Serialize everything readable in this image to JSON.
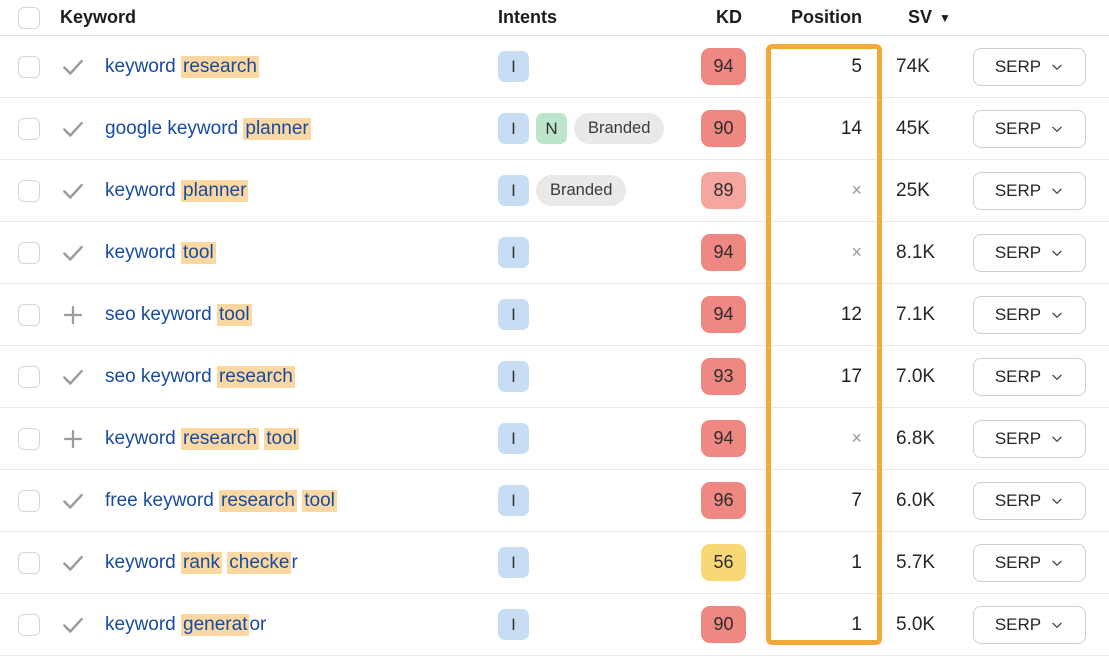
{
  "header": {
    "keyword": "Keyword",
    "intents": "Intents",
    "kd": "KD",
    "position": "Position",
    "sv": "SV",
    "sv_sort": "desc"
  },
  "serp_label": "SERP",
  "position_not_ranking": "×",
  "colors": {
    "link": "#174b9e",
    "highlight": "#fbd7a1",
    "position_box": "#f5a83c",
    "kd_red": "#ef8782",
    "kd_red_soft": "#f4a69f",
    "kd_yellow": "#f8d874",
    "intent_informational": "#c7ddf3",
    "intent_navigational": "#bce5cb",
    "intent_branded": "#e9e9e9"
  },
  "rows": [
    {
      "keyword_parts": [
        {
          "text": "keyword ",
          "highlight": false
        },
        {
          "text": "research",
          "highlight": true
        }
      ],
      "action": "check",
      "intents": [
        "I"
      ],
      "kd": "94",
      "kd_color": "kd_red",
      "position": "5",
      "sv": "74K"
    },
    {
      "keyword_parts": [
        {
          "text": "google keyword ",
          "highlight": false
        },
        {
          "text": "planner",
          "highlight": true
        }
      ],
      "action": "check",
      "intents": [
        "I",
        "N",
        "Branded"
      ],
      "kd": "90",
      "kd_color": "kd_red",
      "position": "14",
      "sv": "45K"
    },
    {
      "keyword_parts": [
        {
          "text": "keyword ",
          "highlight": false
        },
        {
          "text": "planner",
          "highlight": true
        }
      ],
      "action": "check",
      "intents": [
        "I",
        "Branded"
      ],
      "kd": "89",
      "kd_color": "kd_red_soft",
      "position": "×",
      "sv": "25K"
    },
    {
      "keyword_parts": [
        {
          "text": "keyword ",
          "highlight": false
        },
        {
          "text": "tool",
          "highlight": true
        }
      ],
      "action": "check",
      "intents": [
        "I"
      ],
      "kd": "94",
      "kd_color": "kd_red",
      "position": "×",
      "sv": "8.1K"
    },
    {
      "keyword_parts": [
        {
          "text": "seo keyword ",
          "highlight": false
        },
        {
          "text": "tool",
          "highlight": true
        }
      ],
      "action": "plus",
      "intents": [
        "I"
      ],
      "kd": "94",
      "kd_color": "kd_red",
      "position": "12",
      "sv": "7.1K"
    },
    {
      "keyword_parts": [
        {
          "text": "seo keyword ",
          "highlight": false
        },
        {
          "text": "research",
          "highlight": true
        }
      ],
      "action": "check",
      "intents": [
        "I"
      ],
      "kd": "93",
      "kd_color": "kd_red",
      "position": "17",
      "sv": "7.0K"
    },
    {
      "keyword_parts": [
        {
          "text": "keyword ",
          "highlight": false
        },
        {
          "text": "research",
          "highlight": true
        },
        {
          "text": " ",
          "highlight": false
        },
        {
          "text": "tool",
          "highlight": true
        }
      ],
      "action": "plus",
      "intents": [
        "I"
      ],
      "kd": "94",
      "kd_color": "kd_red",
      "position": "×",
      "sv": "6.8K"
    },
    {
      "keyword_parts": [
        {
          "text": "free keyword ",
          "highlight": false
        },
        {
          "text": "research",
          "highlight": true
        },
        {
          "text": " ",
          "highlight": false
        },
        {
          "text": "tool",
          "highlight": true
        }
      ],
      "action": "check",
      "intents": [
        "I"
      ],
      "kd": "96",
      "kd_color": "kd_red",
      "position": "7",
      "sv": "6.0K"
    },
    {
      "keyword_parts": [
        {
          "text": "keyword ",
          "highlight": false
        },
        {
          "text": "rank",
          "highlight": true
        },
        {
          "text": " ",
          "highlight": false
        },
        {
          "text": "checke",
          "highlight": true
        },
        {
          "text": "r",
          "highlight": false
        }
      ],
      "action": "check",
      "intents": [
        "I"
      ],
      "kd": "56",
      "kd_color": "kd_yellow",
      "position": "1",
      "sv": "5.7K"
    },
    {
      "keyword_parts": [
        {
          "text": "keyword ",
          "highlight": false
        },
        {
          "text": "generat",
          "highlight": true
        },
        {
          "text": "or",
          "highlight": false
        }
      ],
      "action": "check",
      "intents": [
        "I"
      ],
      "kd": "90",
      "kd_color": "kd_red",
      "position": "1",
      "sv": "5.0K"
    }
  ]
}
